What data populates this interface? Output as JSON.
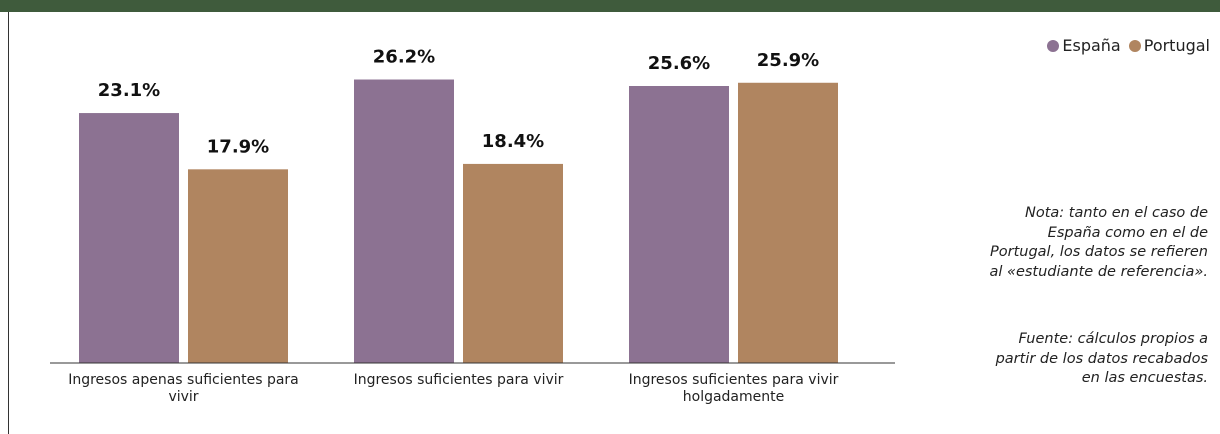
{
  "chart_data": {
    "type": "bar",
    "categories": [
      "Ingresos apenas suficientes para vivir",
      "Ingresos suficientes para vivir",
      "Ingresos suficientes para vivir holgadamente"
    ],
    "series": [
      {
        "name": "España",
        "color": "#8c7292",
        "values": [
          23.1,
          26.2,
          25.6
        ],
        "value_labels": [
          "23.1%",
          "26.2%",
          "25.6%"
        ]
      },
      {
        "name": "Portugal",
        "color": "#b08560",
        "values": [
          17.9,
          18.4,
          25.9
        ],
        "value_labels": [
          "17.9%",
          "18.4%",
          "25.9%"
        ]
      }
    ],
    "ylim": [
      0,
      30
    ],
    "legend": "top-right",
    "notes": [
      "Nota: tanto en el caso de España como en el de Portugal, los datos se refieren al «estudiante de referencia».",
      "Fuente: cálculos propios a partir de los datos recabados en las encuestas."
    ]
  }
}
